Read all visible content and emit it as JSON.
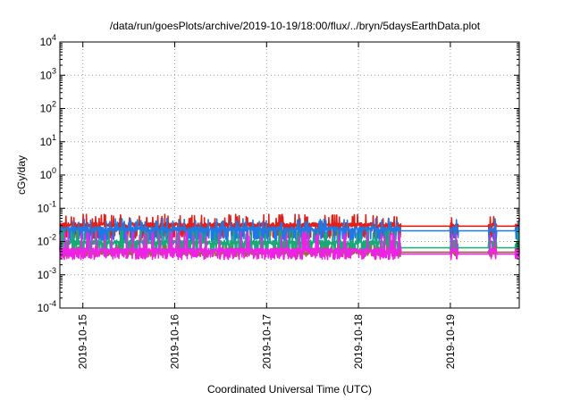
{
  "chart_data": {
    "type": "line",
    "title": "/data/run/goesPlots/archive/2019-10-19/18:00/flux/../bryn/5daysEarthData.plot",
    "xlabel": "Coordinated Universal Time (UTC)",
    "ylabel": "cGy/day",
    "yscale": "log",
    "ylim": [
      0.0001,
      10000
    ],
    "xlim": [
      "2019-10-14T18:00",
      "2019-10-19T18:00"
    ],
    "grid": true,
    "legend": "none",
    "y_ticks": [
      {
        "value": 0.0001,
        "base": "10",
        "exp": "-4"
      },
      {
        "value": 0.001,
        "base": "10",
        "exp": "-3"
      },
      {
        "value": 0.01,
        "base": "10",
        "exp": "-2"
      },
      {
        "value": 0.1,
        "base": "10",
        "exp": "-1"
      },
      {
        "value": 1,
        "base": "10",
        "exp": "0"
      },
      {
        "value": 10,
        "base": "10",
        "exp": "1"
      },
      {
        "value": 100,
        "base": "10",
        "exp": "2"
      },
      {
        "value": 1000,
        "base": "10",
        "exp": "3"
      },
      {
        "value": 10000,
        "base": "10",
        "exp": "4"
      }
    ],
    "x_ticks": [
      {
        "value": "2019-10-15T00:00",
        "label": "2019-10-15"
      },
      {
        "value": "2019-10-16T00:00",
        "label": "2019-10-16"
      },
      {
        "value": "2019-10-17T00:00",
        "label": "2019-10-17"
      },
      {
        "value": "2019-10-18T00:00",
        "label": "2019-10-18"
      },
      {
        "value": "2019-10-19T00:00",
        "label": "2019-10-19"
      }
    ],
    "series": [
      {
        "color": "#e0201a",
        "base": 0.032,
        "lo": 0.014,
        "hi": 0.06,
        "gap_level": 0.029
      },
      {
        "color": "#1e78e6",
        "base": 0.024,
        "lo": 0.011,
        "hi": 0.045,
        "gap_level": 0.021
      },
      {
        "color": "#1aa878",
        "base": 0.0095,
        "lo": 0.005,
        "hi": 0.02,
        "gap_level": 0.0065
      },
      {
        "color": "#9a6a40",
        "base": 0.0048,
        "lo": 0.0038,
        "hi": 0.007,
        "gap_level": 0.0048
      },
      {
        "color": "#f020e8",
        "base": 0.0055,
        "lo": 0.0032,
        "hi": 0.018,
        "gap_level": 0.0042
      }
    ],
    "data_gaps": [
      {
        "from": "2019-10-18T11:00",
        "to": "2019-10-19T00:00"
      },
      {
        "from": "2019-10-19T02:00",
        "to": "2019-10-19T10:00"
      },
      {
        "from": "2019-10-19T12:00",
        "to": "2019-10-19T17:00"
      }
    ]
  }
}
